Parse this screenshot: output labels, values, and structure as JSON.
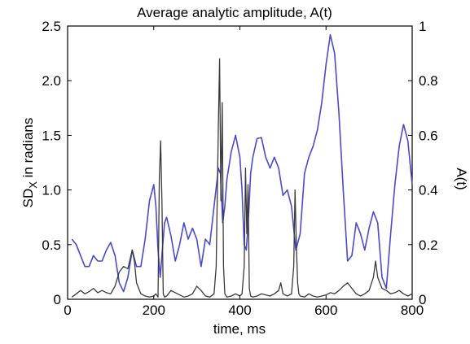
{
  "chart_data": {
    "type": "line",
    "title": "Average analytic amplitude, A(t)",
    "xlabel": "time, ms",
    "ylabel_left_main": "SD",
    "ylabel_left_sub": "X",
    "ylabel_left_rest": " in radians",
    "ylabel_right": "A(t)",
    "xlim": [
      0,
      800
    ],
    "ylim_left": [
      0,
      2.5
    ],
    "ylim_right": [
      0,
      1
    ],
    "x_ticks": [
      "0",
      "200",
      "400",
      "600",
      "800"
    ],
    "x_tick_values": [
      0,
      200,
      400,
      600,
      800
    ],
    "y_left_ticks": [
      "0",
      "0.5",
      "1.0",
      "1.5",
      "2.0",
      "2.5"
    ],
    "y_left_tick_values": [
      0,
      0.5,
      1.0,
      1.5,
      2.0,
      2.5
    ],
    "y_right_ticks": [
      "0",
      "0.2",
      "0.4",
      "0.6",
      "0.8",
      "1"
    ],
    "y_right_tick_values": [
      0,
      0.2,
      0.4,
      0.6,
      0.8,
      1
    ],
    "grid": false,
    "colors": {
      "blue_series": "#4a4ad0",
      "dark_series": "#3a3a3a"
    },
    "series": [
      {
        "axis": "left",
        "color": "#4a4ad0",
        "x": [
          10,
          20,
          30,
          40,
          50,
          60,
          70,
          80,
          90,
          100,
          110,
          120,
          130,
          140,
          150,
          160,
          170,
          180,
          190,
          200,
          205,
          210,
          215,
          220,
          225,
          230,
          240,
          250,
          260,
          270,
          280,
          290,
          300,
          310,
          320,
          330,
          340,
          350,
          355,
          360,
          365,
          370,
          380,
          390,
          400,
          405,
          410,
          415,
          420,
          425,
          430,
          440,
          450,
          460,
          470,
          480,
          490,
          500,
          510,
          520,
          530,
          540,
          550,
          560,
          570,
          580,
          590,
          600,
          610,
          620,
          630,
          640,
          650,
          660,
          670,
          680,
          690,
          700,
          710,
          720,
          730,
          740,
          750,
          760,
          770,
          780,
          790,
          800
        ],
        "y": [
          0.55,
          0.5,
          0.4,
          0.3,
          0.3,
          0.4,
          0.35,
          0.35,
          0.45,
          0.52,
          0.4,
          0.15,
          0.07,
          0.2,
          0.45,
          0.3,
          0.3,
          0.55,
          0.9,
          1.05,
          0.85,
          0.45,
          0.2,
          0.45,
          0.7,
          0.75,
          0.58,
          0.35,
          0.5,
          0.7,
          0.55,
          0.65,
          0.55,
          0.3,
          0.55,
          0.5,
          0.85,
          1.2,
          1.15,
          0.7,
          0.85,
          1.1,
          1.35,
          1.5,
          1.3,
          1.0,
          0.5,
          0.45,
          0.75,
          1.15,
          1.3,
          1.47,
          1.48,
          1.3,
          1.2,
          1.3,
          1.2,
          0.95,
          1.0,
          0.85,
          0.45,
          0.6,
          1.15,
          1.3,
          1.4,
          1.55,
          1.8,
          2.15,
          2.42,
          2.25,
          1.7,
          1.0,
          0.35,
          0.4,
          0.7,
          0.6,
          0.45,
          0.65,
          0.8,
          0.7,
          0.2,
          0.1,
          0.6,
          1.05,
          1.4,
          1.6,
          1.45,
          1.05
        ]
      },
      {
        "axis": "left",
        "color": "#3a3a3a",
        "x": [
          10,
          20,
          30,
          40,
          50,
          60,
          70,
          80,
          90,
          100,
          110,
          120,
          130,
          140,
          150,
          155,
          160,
          170,
          180,
          190,
          200,
          205,
          210,
          213,
          216,
          219,
          222,
          225,
          230,
          240,
          250,
          260,
          270,
          280,
          290,
          300,
          310,
          320,
          330,
          340,
          345,
          350,
          353,
          356,
          359,
          362,
          365,
          370,
          380,
          390,
          400,
          405,
          410,
          413,
          416,
          419,
          422,
          425,
          430,
          440,
          450,
          460,
          470,
          480,
          490,
          495,
          500,
          510,
          520,
          525,
          528,
          531,
          534,
          537,
          540,
          550,
          560,
          570,
          580,
          590,
          600,
          610,
          620,
          630,
          640,
          650,
          660,
          670,
          680,
          690,
          700,
          710,
          715,
          720,
          730,
          740,
          750,
          760,
          770,
          780,
          790,
          800
        ],
        "y": [
          0.02,
          0.05,
          0.08,
          0.05,
          0.07,
          0.1,
          0.06,
          0.08,
          0.06,
          0.05,
          0.12,
          0.25,
          0.3,
          0.28,
          0.45,
          0.35,
          0.15,
          0.05,
          0.03,
          0.02,
          0.03,
          0.05,
          0.02,
          1.1,
          1.45,
          0.9,
          0.05,
          0.02,
          0.03,
          0.08,
          0.06,
          0.04,
          0.02,
          0.03,
          0.05,
          0.12,
          0.08,
          0.03,
          0.02,
          0.05,
          0.3,
          1.6,
          2.2,
          0.9,
          1.8,
          0.3,
          0.05,
          0.02,
          0.03,
          0.05,
          0.03,
          0.05,
          0.3,
          1.2,
          0.6,
          1.05,
          0.1,
          0.03,
          0.02,
          0.03,
          0.05,
          0.04,
          0.03,
          0.05,
          0.08,
          0.15,
          0.05,
          0.03,
          0.05,
          0.3,
          1.0,
          0.5,
          0.15,
          0.05,
          0.03,
          0.02,
          0.05,
          0.03,
          0.02,
          0.03,
          0.04,
          0.06,
          0.05,
          0.08,
          0.12,
          0.15,
          0.1,
          0.05,
          0.03,
          0.05,
          0.08,
          0.2,
          0.35,
          0.2,
          0.1,
          0.08,
          0.05,
          0.06,
          0.08,
          0.05,
          0.03,
          0.05
        ]
      }
    ]
  }
}
